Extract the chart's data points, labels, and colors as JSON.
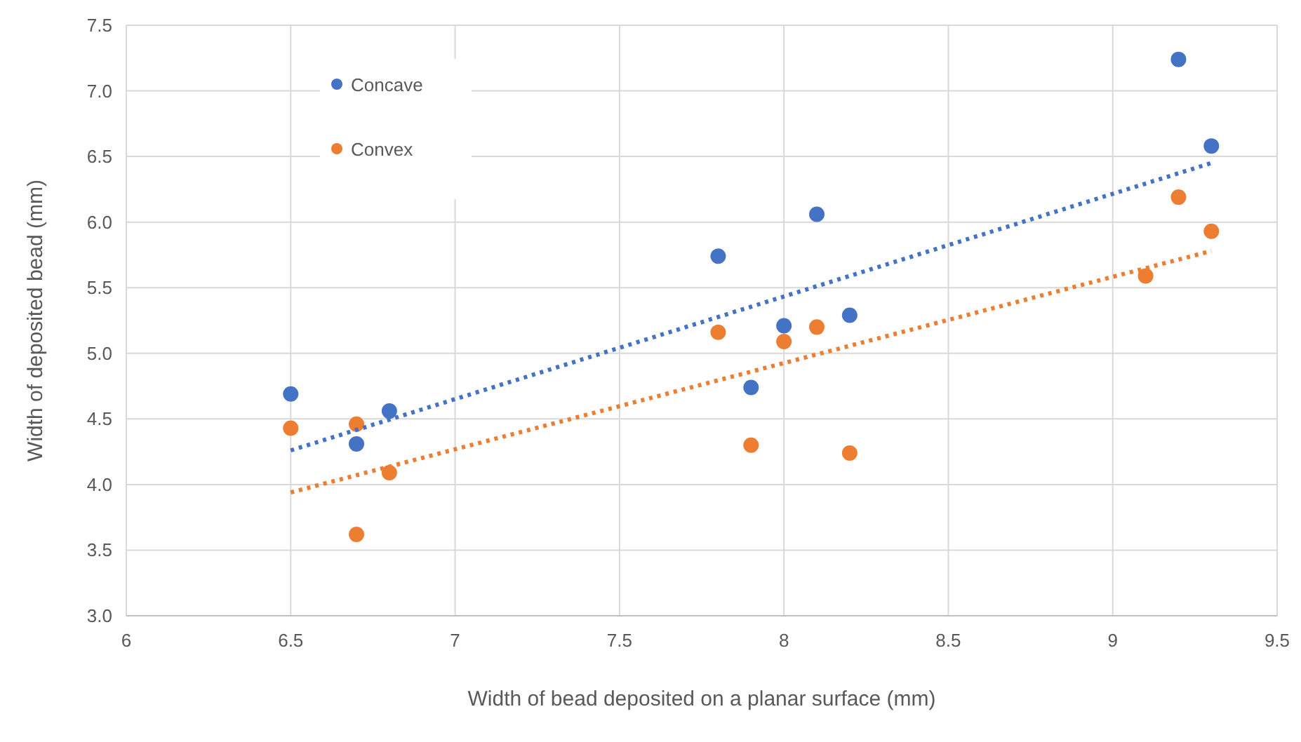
{
  "chart_data": {
    "type": "scatter",
    "xlabel": "Width of bead deposited on a planar surface (mm)",
    "ylabel": "Width of deposited bead (mm)",
    "xlim": [
      6,
      9.5
    ],
    "xticks": [
      6,
      6.5,
      7,
      7.5,
      8,
      8.5,
      9,
      9.5
    ],
    "ylim": [
      3,
      7.5
    ],
    "yticks": [
      {
        "value": 3,
        "label": "3.0"
      },
      {
        "value": 3.5,
        "label": "3.5"
      },
      {
        "value": 4,
        "label": "4.0"
      },
      {
        "value": 4.5,
        "label": "4.5"
      },
      {
        "value": 5,
        "label": "5.0"
      },
      {
        "value": 5.5,
        "label": "5.5"
      },
      {
        "value": 6,
        "label": "6.0"
      },
      {
        "value": 6.5,
        "label": "6.5"
      },
      {
        "value": 7,
        "label": "7.0"
      },
      {
        "value": 7.5,
        "label": "7.5"
      }
    ],
    "grid": true,
    "legend": "top left",
    "marker": "circle",
    "series": [
      {
        "name": "Concave",
        "color": "#4472c4",
        "x": [
          6.5,
          6.7,
          6.8,
          7.8,
          7.9,
          8.0,
          8.1,
          8.2,
          9.2,
          9.3
        ],
        "values": [
          4.69,
          4.31,
          4.56,
          5.74,
          4.74,
          5.21,
          6.06,
          5.29,
          7.24,
          6.58
        ]
      },
      {
        "name": "Convex",
        "color": "#ed7d31",
        "x": [
          6.5,
          6.7,
          6.7,
          6.8,
          7.8,
          7.9,
          8.0,
          8.1,
          8.2,
          9.1,
          9.2,
          9.3
        ],
        "values": [
          4.43,
          4.46,
          3.62,
          4.09,
          5.16,
          4.3,
          5.09,
          5.2,
          4.24,
          5.59,
          6.19,
          5.93
        ]
      },
      {
        "type": "line",
        "line_style": "dotted",
        "marker": "none",
        "color": "#4472c4",
        "x": [
          6.5,
          9.3
        ],
        "values": [
          4.26,
          6.45
        ]
      },
      {
        "type": "line",
        "line_style": "dotted",
        "marker": "none",
        "color": "#ed7d31",
        "x": [
          6.5,
          9.3
        ],
        "values": [
          3.94,
          5.78
        ]
      }
    ]
  }
}
